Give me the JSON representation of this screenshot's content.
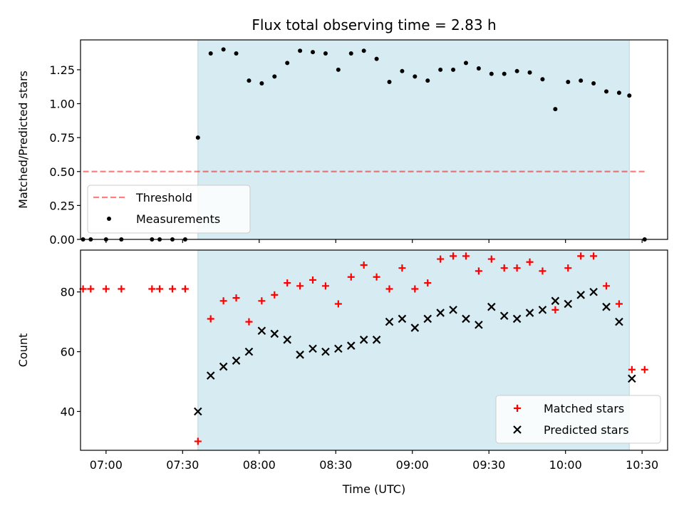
{
  "colors": {
    "span_fill": "#add8e6",
    "threshold": "#ff0000",
    "measurement": "#000000",
    "matched": "#ff0000",
    "predicted": "#000000"
  },
  "chart_data": [
    {
      "type": "scatter",
      "title": "Flux total observing time = 2.83 h",
      "xlabel": "",
      "ylabel": "Matched/Predicted stars",
      "xlim": [
        "06:50",
        "10:40"
      ],
      "ylim": [
        0,
        1.47
      ],
      "yticks": [
        "0.00",
        "0.25",
        "0.50",
        "0.75",
        "1.00",
        "1.25"
      ],
      "shaded_span": [
        "07:36",
        "10:25"
      ],
      "threshold": {
        "name": "Threshold",
        "y": 0.5,
        "x_from": "06:51",
        "x_to": "10:31",
        "style": "dashed"
      },
      "legend": {
        "location": "lower-left",
        "entries": [
          "Threshold",
          "Measurements"
        ]
      },
      "series": [
        {
          "name": "Measurements",
          "marker": "dot",
          "x": [
            "06:51",
            "06:54",
            "07:00",
            "07:06",
            "07:18",
            "07:21",
            "07:26",
            "07:31",
            "07:36",
            "07:41",
            "07:46",
            "07:51",
            "07:56",
            "08:01",
            "08:06",
            "08:11",
            "08:16",
            "08:21",
            "08:26",
            "08:31",
            "08:36",
            "08:41",
            "08:46",
            "08:51",
            "08:56",
            "09:01",
            "09:06",
            "09:11",
            "09:16",
            "09:21",
            "09:26",
            "09:31",
            "09:36",
            "09:41",
            "09:46",
            "09:51",
            "09:56",
            "10:01",
            "10:06",
            "10:11",
            "10:16",
            "10:21",
            "10:25",
            "10:31"
          ],
          "y": [
            0,
            0,
            0,
            0,
            0,
            0,
            0,
            0,
            0.75,
            1.37,
            1.4,
            1.37,
            1.17,
            1.15,
            1.2,
            1.3,
            1.39,
            1.38,
            1.37,
            1.25,
            1.37,
            1.39,
            1.33,
            1.16,
            1.24,
            1.2,
            1.17,
            1.25,
            1.25,
            1.3,
            1.26,
            1.22,
            1.22,
            1.24,
            1.23,
            1.18,
            0.96,
            1.16,
            1.17,
            1.15,
            1.09,
            1.08,
            1.06,
            0
          ]
        }
      ]
    },
    {
      "type": "scatter",
      "title": "",
      "xlabel": "Time (UTC)",
      "ylabel": "Count",
      "xlim": [
        "06:50",
        "10:40"
      ],
      "ylim": [
        27,
        94
      ],
      "yticks": [
        "40",
        "60",
        "80"
      ],
      "xticks": [
        "07:00",
        "07:30",
        "08:00",
        "08:30",
        "09:00",
        "09:30",
        "10:00",
        "10:30"
      ],
      "shaded_span": [
        "07:36",
        "10:25"
      ],
      "legend": {
        "location": "lower-right",
        "entries": [
          "Matched stars",
          "Predicted stars"
        ]
      },
      "series": [
        {
          "name": "Matched stars",
          "marker": "plus",
          "x": [
            "06:51",
            "06:54",
            "07:00",
            "07:06",
            "07:18",
            "07:21",
            "07:26",
            "07:31",
            "07:36",
            "07:41",
            "07:46",
            "07:51",
            "07:56",
            "08:01",
            "08:06",
            "08:11",
            "08:16",
            "08:21",
            "08:26",
            "08:31",
            "08:36",
            "08:41",
            "08:46",
            "08:51",
            "08:56",
            "09:01",
            "09:06",
            "09:11",
            "09:16",
            "09:21",
            "09:26",
            "09:31",
            "09:36",
            "09:41",
            "09:46",
            "09:51",
            "09:56",
            "10:01",
            "10:06",
            "10:11",
            "10:16",
            "10:21",
            "10:26",
            "10:31"
          ],
          "y": [
            81,
            81,
            81,
            81,
            81,
            81,
            81,
            81,
            30,
            71,
            77,
            78,
            70,
            77,
            79,
            83,
            82,
            84,
            82,
            76,
            85,
            89,
            85,
            81,
            88,
            81,
            83,
            91,
            92,
            92,
            87,
            91,
            88,
            88,
            90,
            87,
            74,
            88,
            92,
            92,
            82,
            76,
            54,
            54
          ]
        },
        {
          "name": "Predicted stars",
          "marker": "x",
          "x": [
            "07:36",
            "07:41",
            "07:46",
            "07:51",
            "07:56",
            "08:01",
            "08:06",
            "08:11",
            "08:16",
            "08:21",
            "08:26",
            "08:31",
            "08:36",
            "08:41",
            "08:46",
            "08:51",
            "08:56",
            "09:01",
            "09:06",
            "09:11",
            "09:16",
            "09:21",
            "09:26",
            "09:31",
            "09:36",
            "09:41",
            "09:46",
            "09:51",
            "09:56",
            "10:01",
            "10:06",
            "10:11",
            "10:16",
            "10:21",
            "10:26"
          ],
          "y": [
            40,
            52,
            55,
            57,
            60,
            67,
            66,
            64,
            59,
            61,
            60,
            61,
            62,
            64,
            64,
            70,
            71,
            68,
            71,
            73,
            74,
            71,
            69,
            75,
            72,
            71,
            73,
            74,
            77,
            76,
            79,
            80,
            75,
            70,
            51
          ]
        }
      ]
    }
  ]
}
